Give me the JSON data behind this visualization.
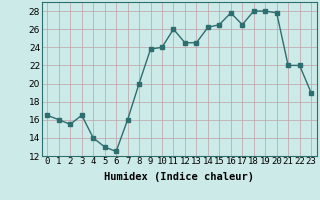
{
  "x": [
    0,
    1,
    2,
    3,
    4,
    5,
    6,
    7,
    8,
    9,
    10,
    11,
    12,
    13,
    14,
    15,
    16,
    17,
    18,
    19,
    20,
    21,
    22,
    23
  ],
  "y": [
    16.5,
    16.0,
    15.5,
    16.5,
    14.0,
    13.0,
    12.5,
    16.0,
    20.0,
    23.8,
    24.0,
    26.0,
    24.5,
    24.5,
    26.2,
    26.5,
    27.8,
    26.5,
    28.0,
    28.0,
    27.8,
    22.0,
    22.0,
    19.0
  ],
  "line_color": "#2d6e6e",
  "marker": "s",
  "marker_size": 2.5,
  "bg_color": "#cceae8",
  "grid_color": "#b0d8d4",
  "xlabel": "Humidex (Indice chaleur)",
  "ylim": [
    12,
    29
  ],
  "xlim": [
    -0.5,
    23.5
  ],
  "yticks": [
    12,
    14,
    16,
    18,
    20,
    22,
    24,
    26,
    28
  ],
  "xtick_labels": [
    "0",
    "1",
    "2",
    "3",
    "4",
    "5",
    "6",
    "7",
    "8",
    "9",
    "10",
    "11",
    "12",
    "13",
    "14",
    "15",
    "16",
    "17",
    "18",
    "19",
    "20",
    "21",
    "22",
    "23"
  ],
  "line_width": 1.0,
  "xlabel_fontsize": 7.5,
  "tick_fontsize": 6.5
}
